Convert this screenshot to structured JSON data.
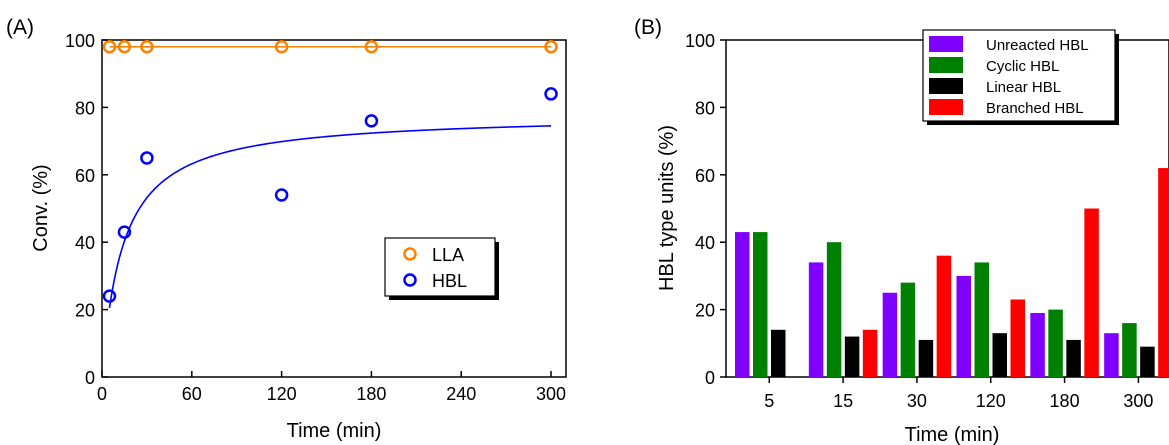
{
  "panels": {
    "a_label": "(A)",
    "b_label": "(B)"
  },
  "chart_data": [
    {
      "type": "scatter",
      "xlabel": "Time (min)",
      "ylabel": "Conv. (%)",
      "xlim": [
        0,
        310
      ],
      "ylim": [
        0,
        100
      ],
      "xticks": [
        0,
        60,
        120,
        180,
        240,
        300
      ],
      "yticks": [
        0,
        20,
        40,
        60,
        80,
        100
      ],
      "grid": false,
      "legend_position": "center-right",
      "series": [
        {
          "name": "LLA",
          "color": "#ff8000",
          "marker": "open-circle",
          "x": [
            5,
            15,
            30,
            120,
            180,
            300
          ],
          "y": [
            98,
            98,
            98,
            98,
            98,
            98
          ],
          "fit": {
            "kind": "constant",
            "y": 98
          }
        },
        {
          "name": "HBL",
          "color": "#0000ff",
          "marker": "open-circle",
          "x": [
            5,
            15,
            30,
            120,
            180,
            300
          ],
          "y": [
            24,
            43,
            65,
            54,
            76,
            84
          ],
          "fit": {
            "kind": "saturation",
            "ymax": 78,
            "k": 14
          }
        }
      ]
    },
    {
      "type": "bar",
      "xlabel": "Time (min)",
      "ylabel": "HBL type units (%)",
      "categories": [
        "5",
        "15",
        "30",
        "120",
        "180",
        "300"
      ],
      "ylim": [
        0,
        100
      ],
      "yticks": [
        0,
        20,
        40,
        60,
        80,
        100
      ],
      "grid": false,
      "legend_position": "top-right",
      "series": [
        {
          "name": "Unreacted HBL",
          "color": "#8000ff",
          "values": [
            43,
            34,
            25,
            30,
            19,
            13
          ]
        },
        {
          "name": "Cyclic HBL",
          "color": "#008000",
          "values": [
            43,
            40,
            28,
            34,
            20,
            16
          ]
        },
        {
          "name": "Linear HBL",
          "color": "#000000",
          "values": [
            14,
            12,
            11,
            13,
            11,
            9
          ]
        },
        {
          "name": "Branched HBL",
          "color": "#ff0000",
          "values": [
            null,
            14,
            36,
            23,
            50,
            62
          ]
        }
      ]
    }
  ]
}
